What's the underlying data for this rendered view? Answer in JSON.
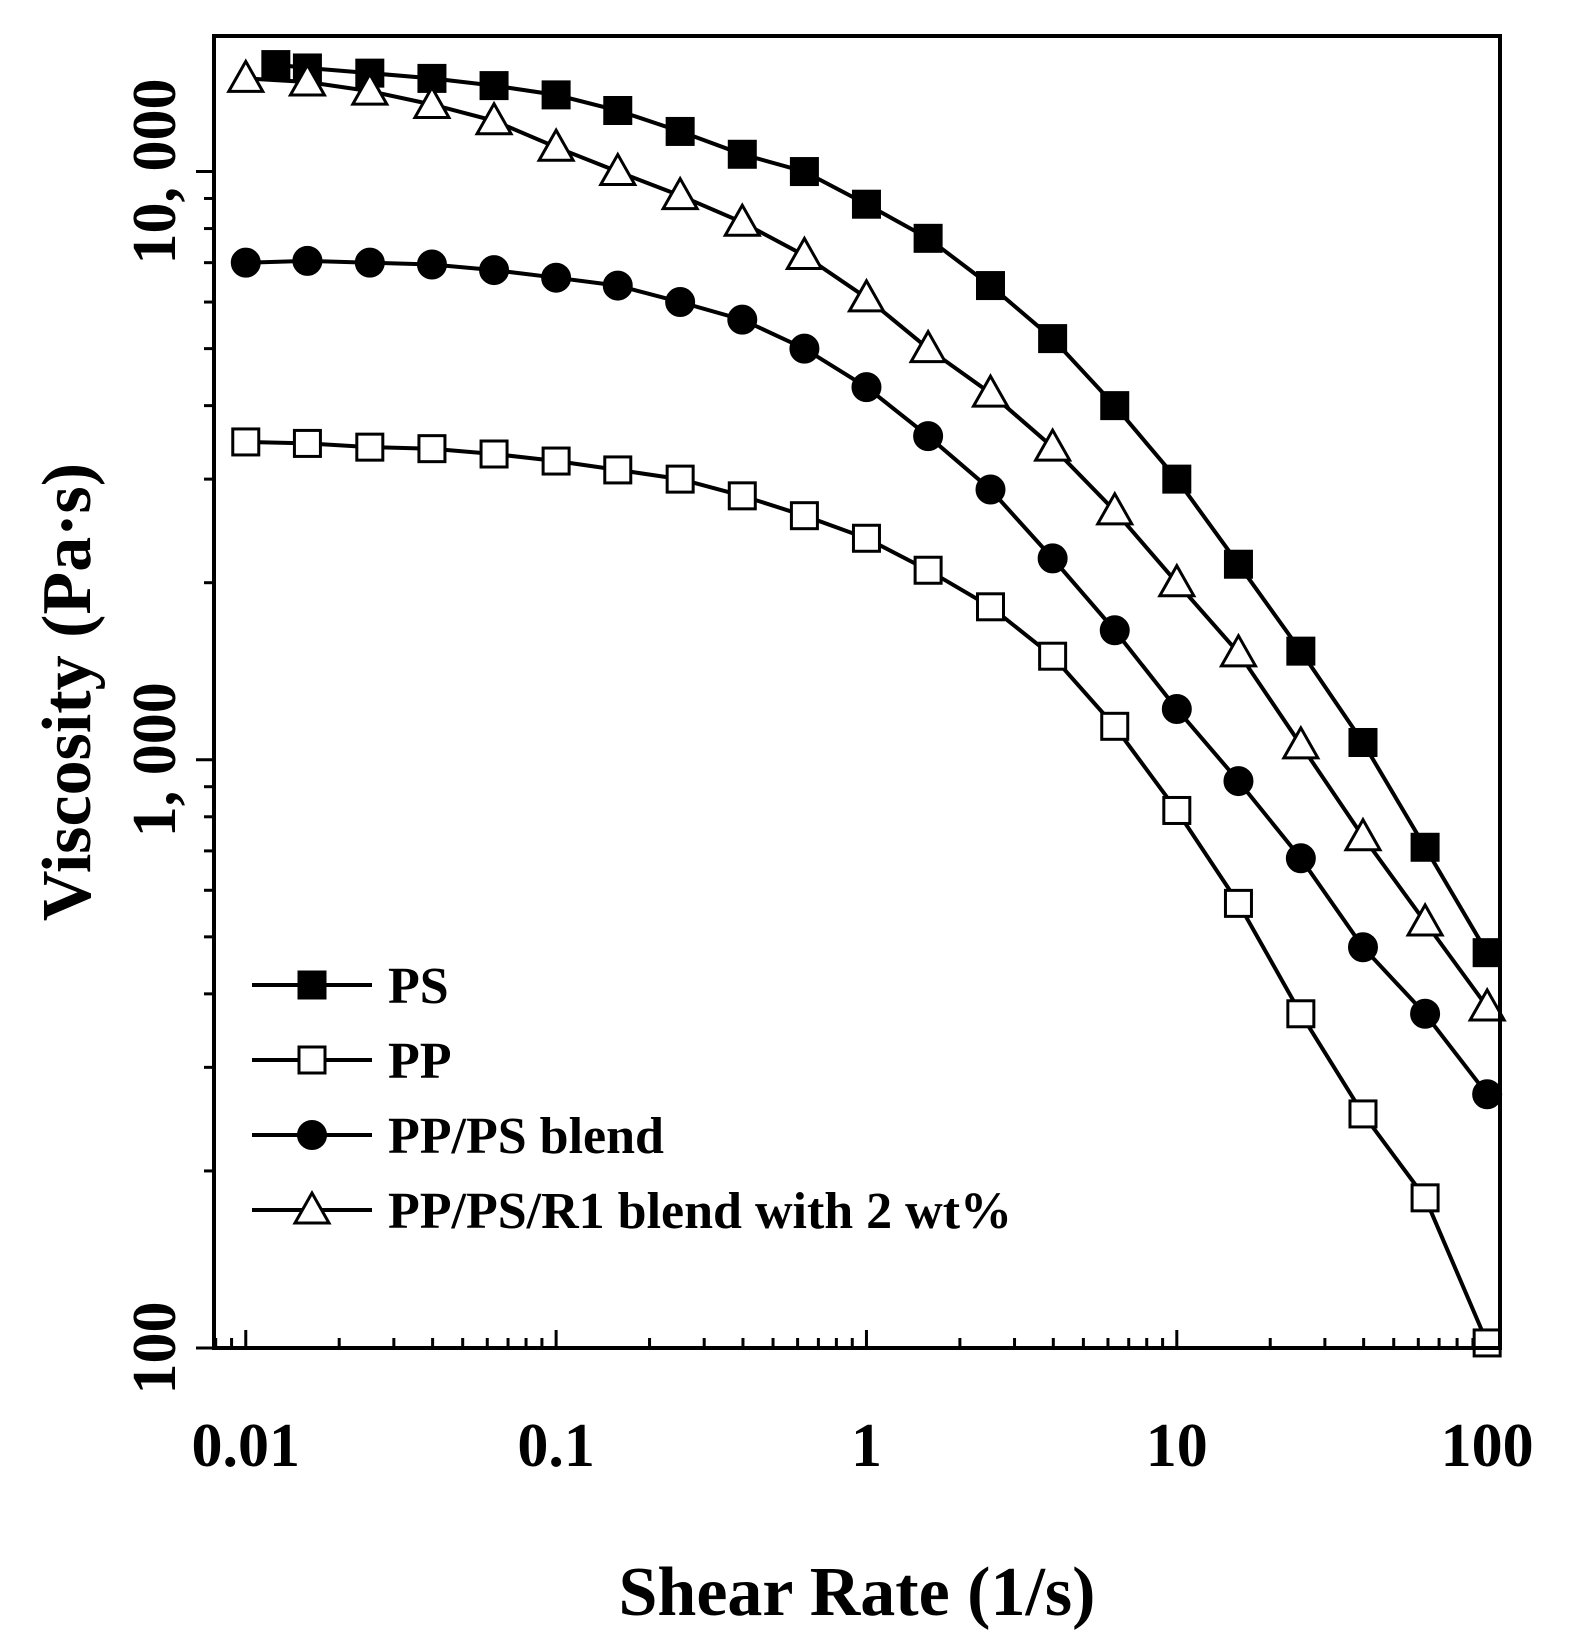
{
  "chart_data": {
    "type": "line",
    "title": "",
    "xlabel": "Shear Rate (1/s)",
    "ylabel": "Viscosity (Pa·s)",
    "x_scale": "log",
    "y_scale": "log",
    "xlim": [
      0.0079,
      110
    ],
    "ylim": [
      100,
      17000
    ],
    "x_ticks": [
      {
        "value": 0.01,
        "label": "0.01"
      },
      {
        "value": 0.1,
        "label": "0.1"
      },
      {
        "value": 1,
        "label": "1"
      },
      {
        "value": 10,
        "label": "10"
      },
      {
        "value": 100,
        "label": "100"
      }
    ],
    "y_ticks": [
      {
        "value": 100,
        "label": "100"
      },
      {
        "value": 1000,
        "label": "1, 000"
      },
      {
        "value": 10000,
        "label": "10, 000"
      }
    ],
    "grid": false,
    "legend_position": "bottom-left",
    "x": [
      0.01,
      0.0158,
      0.0251,
      0.0398,
      0.0631,
      0.1,
      0.158,
      0.251,
      0.398,
      0.631,
      1,
      1.58,
      2.51,
      3.98,
      6.31,
      10,
      15.8,
      25.1,
      39.8,
      63.1,
      100
    ],
    "series": [
      {
        "name": "PS",
        "marker": "filled-square",
        "x": [
          0.0125,
          0.0158,
          0.0251,
          0.0398,
          0.0631,
          0.1,
          0.158,
          0.251,
          0.398,
          0.631,
          1,
          1.58,
          2.51,
          3.98,
          6.31,
          10,
          15.8,
          25.1,
          39.8,
          63.1,
          100
        ],
        "values": [
          15200,
          15000,
          14700,
          14400,
          14000,
          13500,
          12700,
          11700,
          10700,
          10000,
          8800,
          7700,
          6400,
          5200,
          4000,
          3000,
          2150,
          1530,
          1070,
          710,
          470
        ]
      },
      {
        "name": "PP",
        "marker": "open-square",
        "values": [
          3470,
          3450,
          3400,
          3380,
          3310,
          3220,
          3110,
          3000,
          2810,
          2600,
          2380,
          2100,
          1820,
          1500,
          1140,
          820,
          570,
          370,
          250,
          180,
          102
        ]
      },
      {
        "name": "PP/PS blend",
        "marker": "filled-circle",
        "values": [
          7000,
          7050,
          7000,
          6950,
          6800,
          6600,
          6400,
          6000,
          5600,
          5000,
          4300,
          3550,
          2880,
          2200,
          1660,
          1220,
          920,
          680,
          480,
          370,
          270
        ]
      },
      {
        "name": "PP/PS/R1 blend with 2 wt%",
        "marker": "open-triangle",
        "values": [
          14400,
          14200,
          13700,
          13000,
          12200,
          11000,
          10000,
          9100,
          8200,
          7200,
          6100,
          5000,
          4200,
          3400,
          2650,
          2000,
          1520,
          1060,
          740,
          530,
          380
        ]
      }
    ]
  }
}
